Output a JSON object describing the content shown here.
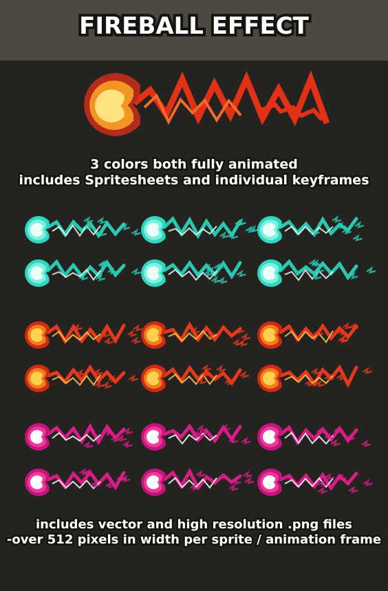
{
  "header": {
    "title": "FIREBALL EFFECT"
  },
  "captions": {
    "top_line1": "3 colors both fully animated",
    "top_line2": "includes Spritesheets and individual keyframes",
    "bottom_line1": "includes vector and high resolution .png  files",
    "bottom_line2": "-over 512 pixels in width  per sprite / animation frame"
  },
  "palettes": {
    "hero": {
      "outer": "#b32b1a",
      "mid": "#f39524",
      "core": "#fde27e",
      "trail": "#e33117"
    },
    "cyan": {
      "outer": "#2ed8c2",
      "mid": "#7ef0de",
      "core": "#eafff9",
      "trail": "#2bc7b0"
    },
    "red": {
      "outer": "#cf2a14",
      "mid": "#f27d1b",
      "core": "#ffcf4e",
      "trail": "#e5381c"
    },
    "pink": {
      "outer": "#c2157d",
      "mid": "#f03a9a",
      "core": "#ffffff",
      "trail": "#d61d86"
    }
  },
  "colors": {
    "background": "#242320",
    "header_bar": "#4c4a40",
    "text": "#ffffff",
    "outline": "#151411"
  }
}
